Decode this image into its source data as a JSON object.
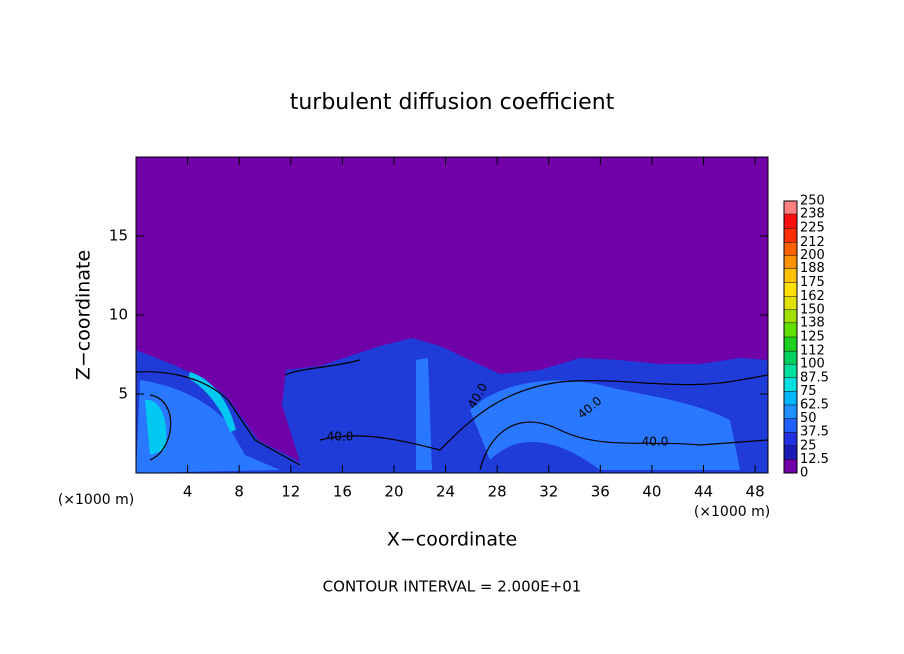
{
  "chart_data": {
    "type": "contour",
    "title": "turbulent diffusion coefficient",
    "xlabel": "X−coordinate",
    "ylabel": "Z−coordinate",
    "x_unit_left": "(×1000 m)",
    "x_unit_right": "(×1000 m)",
    "xlim": [
      0,
      49
    ],
    "xticks": [
      4,
      8,
      12,
      16,
      20,
      24,
      28,
      32,
      36,
      40,
      44,
      48
    ],
    "ylim": [
      0,
      20
    ],
    "yticks": [
      5,
      10,
      15
    ],
    "colorbar": {
      "ticks": [
        0,
        12.5,
        25,
        37.5,
        50,
        62.5,
        75,
        87.5,
        100,
        112,
        125,
        138,
        150,
        162,
        175,
        188,
        200,
        212,
        225,
        238,
        250
      ],
      "colors": [
        "#7000a8",
        "#1a1ab4",
        "#2030e0",
        "#2060ff",
        "#2090ff",
        "#00b8ff",
        "#00e0e0",
        "#00e0a0",
        "#00d060",
        "#20d020",
        "#60e000",
        "#a0e000",
        "#e0e000",
        "#ffe000",
        "#ffc000",
        "#ff9000",
        "#ff6000",
        "#ff3000",
        "#ff1010",
        "#ff8080"
      ]
    },
    "contour_labels": [
      "40.0",
      "40.0",
      "40.0",
      "40.0"
    ],
    "footnote": "CONTOUR INTERVAL = 2.000E+01"
  }
}
